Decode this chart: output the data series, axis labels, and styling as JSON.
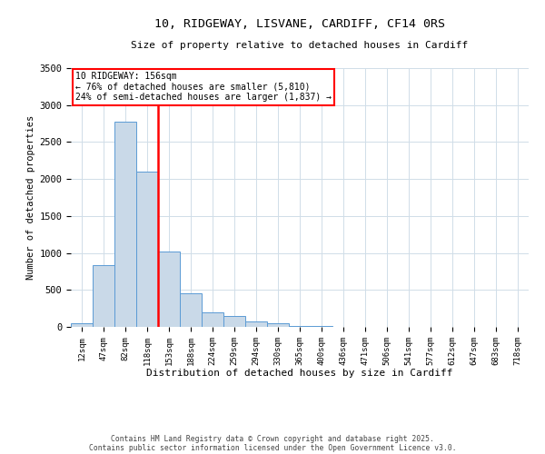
{
  "title": "10, RIDGEWAY, LISVANE, CARDIFF, CF14 0RS",
  "subtitle": "Size of property relative to detached houses in Cardiff",
  "xlabel": "Distribution of detached houses by size in Cardiff",
  "ylabel": "Number of detached properties",
  "bar_labels": [
    "12sqm",
    "47sqm",
    "82sqm",
    "118sqm",
    "153sqm",
    "188sqm",
    "224sqm",
    "259sqm",
    "294sqm",
    "330sqm",
    "365sqm",
    "400sqm",
    "436sqm",
    "471sqm",
    "506sqm",
    "541sqm",
    "577sqm",
    "612sqm",
    "647sqm",
    "683sqm",
    "718sqm"
  ],
  "bar_values": [
    55,
    840,
    2770,
    2100,
    1020,
    450,
    200,
    145,
    75,
    45,
    10,
    10,
    5,
    5,
    2,
    2,
    2,
    1,
    1,
    1,
    1
  ],
  "bar_color": "#c9d9e8",
  "bar_edge_color": "#5b9bd5",
  "vline_color": "red",
  "vline_x": 3.5,
  "annotation_title": "10 RIDGEWAY: 156sqm",
  "annotation_line1": "← 76% of detached houses are smaller (5,810)",
  "annotation_line2": "24% of semi-detached houses are larger (1,837) →",
  "ylim": [
    0,
    3500
  ],
  "yticks": [
    0,
    500,
    1000,
    1500,
    2000,
    2500,
    3000,
    3500
  ],
  "footnote1": "Contains HM Land Registry data © Crown copyright and database right 2025.",
  "footnote2": "Contains public sector information licensed under the Open Government Licence v3.0.",
  "background_color": "#ffffff",
  "grid_color": "#d0dde8"
}
